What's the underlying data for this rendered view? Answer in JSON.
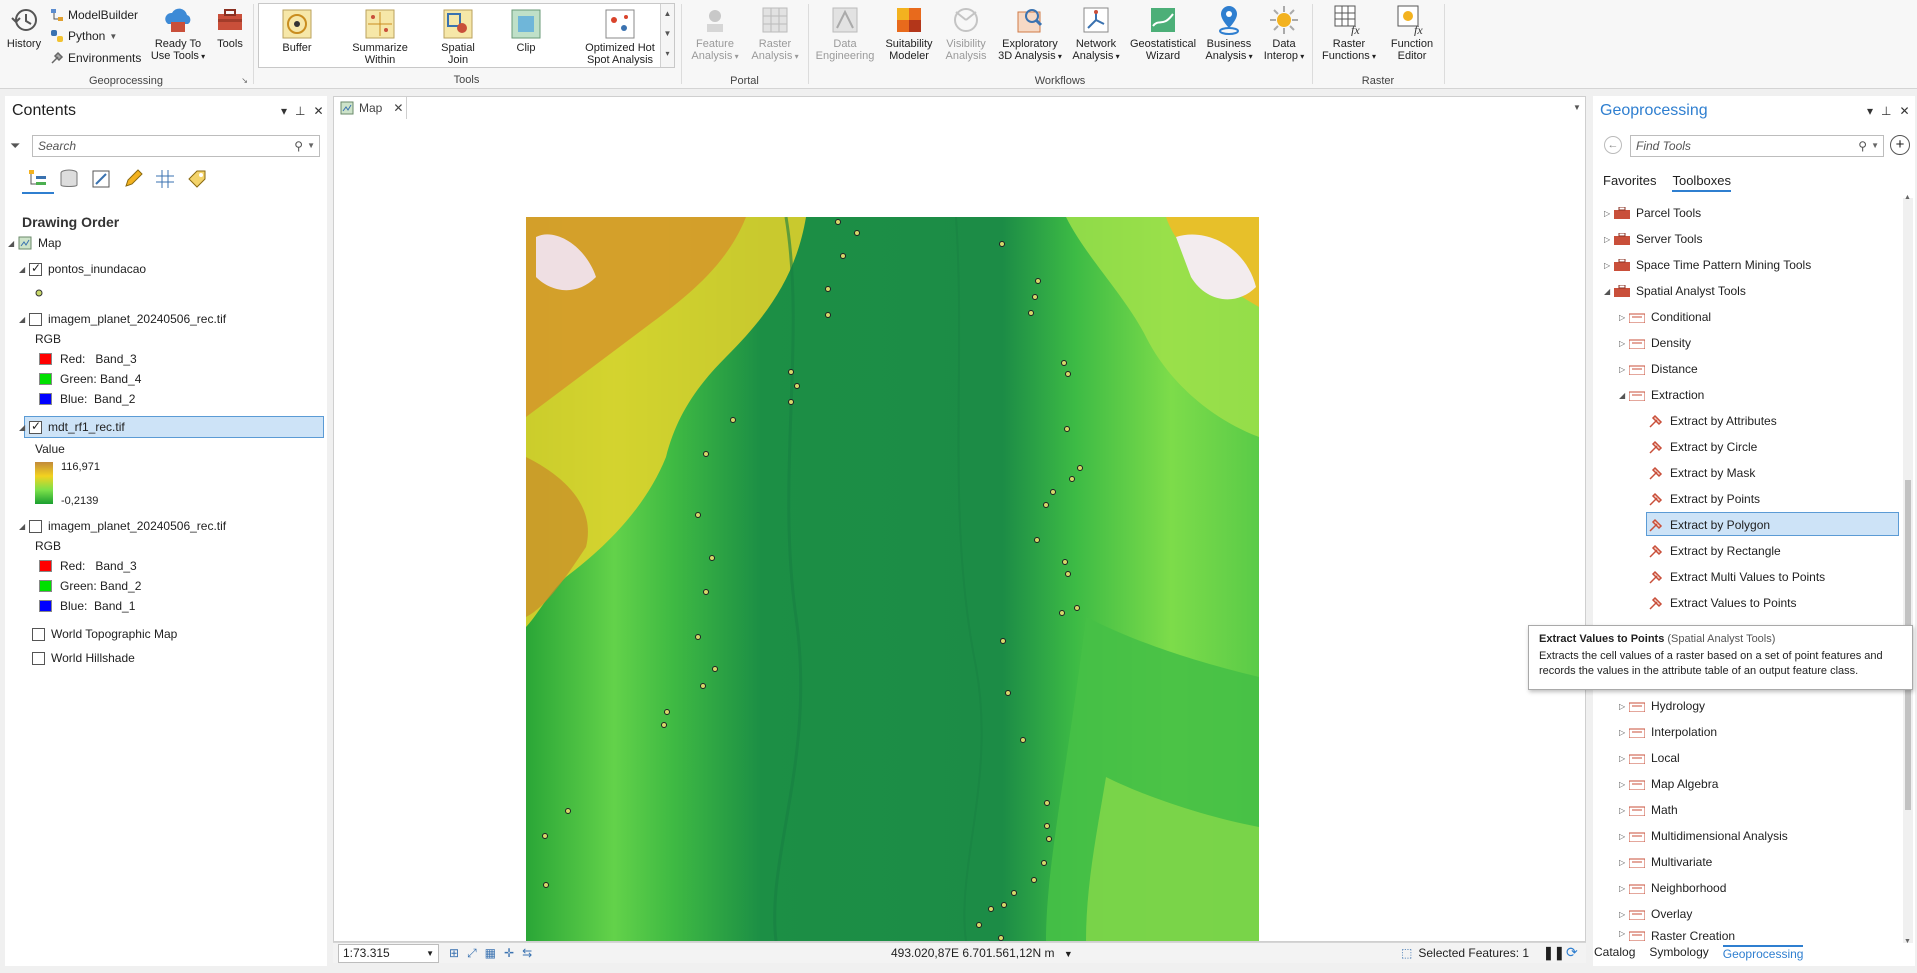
{
  "ribbon": {
    "history": "History",
    "modelbuilder": "ModelBuilder",
    "python": "Python",
    "environments": "Environments",
    "ready_to_use_1": "Ready To",
    "ready_to_use_2": "Use Tools",
    "tools_btn": "Tools",
    "geoprocessing_group": "Geoprocessing",
    "gallery": [
      {
        "l1": "Buffer",
        "l2": ""
      },
      {
        "l1": "Summarize",
        "l2": "Within"
      },
      {
        "l1": "Spatial",
        "l2": "Join"
      },
      {
        "l1": "Clip",
        "l2": ""
      },
      {
        "l1": "Optimized Hot",
        "l2": "Spot Analysis"
      }
    ],
    "tools_group": "Tools",
    "portal": [
      {
        "l1": "Feature",
        "l2": "Analysis"
      },
      {
        "l1": "Raster",
        "l2": "Analysis"
      }
    ],
    "portal_group": "Portal",
    "workflows": [
      {
        "l1": "Data",
        "l2": "Engineering"
      },
      {
        "l1": "Suitability",
        "l2": "Modeler"
      },
      {
        "l1": "Visibility",
        "l2": "Analysis"
      },
      {
        "l1": "Exploratory",
        "l2": "3D Analysis"
      },
      {
        "l1": "Network",
        "l2": "Analysis"
      },
      {
        "l1": "Geostatistical",
        "l2": "Wizard"
      },
      {
        "l1": "Business",
        "l2": "Analysis"
      },
      {
        "l1": "Data",
        "l2": "Interop"
      }
    ],
    "workflows_group": "Workflows",
    "raster": [
      {
        "l1": "Raster",
        "l2": "Functions"
      },
      {
        "l1": "Function",
        "l2": "Editor"
      }
    ],
    "raster_group": "Raster"
  },
  "contents": {
    "title": "Contents",
    "search_placeholder": "Search",
    "drawing_order": "Drawing Order",
    "map": "Map",
    "layer1": "pontos_inundacao",
    "layer2": "imagem_planet_20240506_rec.tif",
    "rgb": "RGB",
    "l2_red": "Red:   Band_3",
    "l2_green": "Green: Band_4",
    "l2_blue": "Blue:  Band_2",
    "layer3": "mdt_rf1_rec.tif",
    "value": "Value",
    "val_max": "116,971",
    "val_min": "-0,2139",
    "layer4": "imagem_planet_20240506_rec.tif",
    "l4_red": "Red:   Band_3",
    "l4_green": "Green: Band_2",
    "l4_blue": "Blue:  Band_1",
    "layer5": "World Topographic Map",
    "layer6": "World Hillshade"
  },
  "map": {
    "tab": "Map",
    "scale": "1:73.315",
    "coords": "493.020,87E 6.701.561,12N m",
    "selected": "Selected Features: 1"
  },
  "geoprocessing": {
    "title": "Geoprocessing",
    "search_placeholder": "Find Tools",
    "tab_favorites": "Favorites",
    "tab_toolboxes": "Toolboxes",
    "toolboxes": [
      "Parcel Tools",
      "Server Tools",
      "Space Time Pattern Mining Tools",
      "Spatial Analyst Tools"
    ],
    "sub_before": [
      "Conditional",
      "Density",
      "Distance",
      "Extraction"
    ],
    "extraction_tools": [
      "Extract by Attributes",
      "Extract by Circle",
      "Extract by Mask",
      "Extract by Points",
      "Extract by Polygon",
      "Extract by Rectangle",
      "Extract Multi Values to Points",
      "Extract Values to Points"
    ],
    "sub_after": [
      "Hydrology",
      "Interpolation",
      "Local",
      "Map Algebra",
      "Math",
      "Multidimensional Analysis",
      "Multivariate",
      "Neighborhood",
      "Overlay",
      "Raster Creation"
    ],
    "tooltip_title": "Extract Values to Points",
    "tooltip_source": "(Spatial Analyst Tools)",
    "tooltip_desc": "Extracts the cell values of a raster based on a set of point features and records the values in the attribute table of an output feature class."
  },
  "bottom_tabs": [
    "Catalog",
    "Symbology",
    "Geoprocessing"
  ]
}
